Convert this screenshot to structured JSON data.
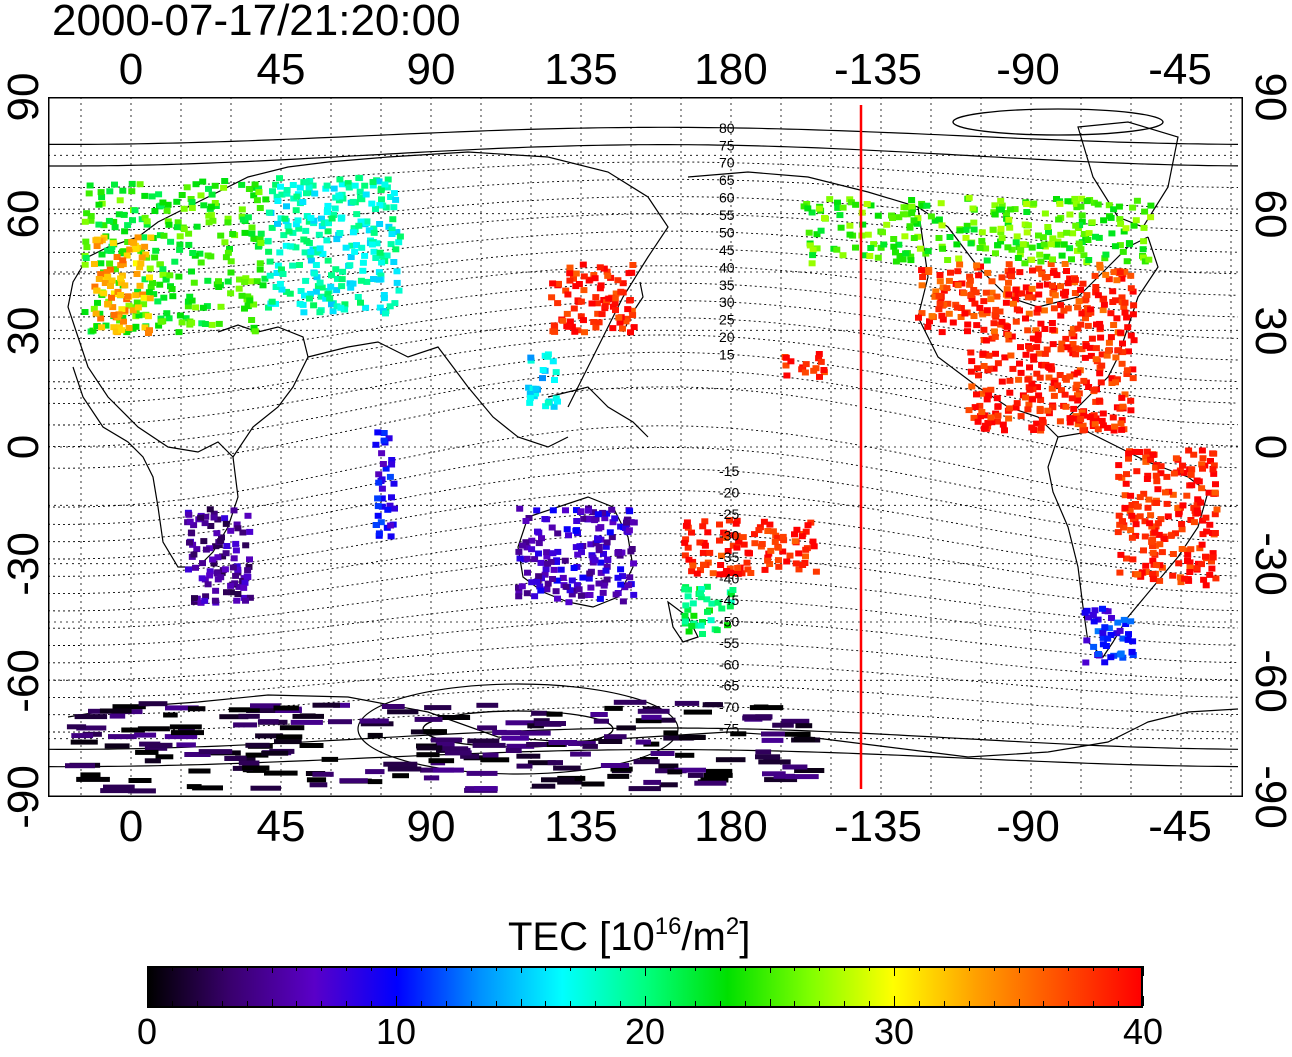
{
  "timestamp": "2000-07-17/21:20:00",
  "top_lon_labels": [
    "0",
    "45",
    "90",
    "135",
    "180",
    "-135",
    "-90",
    "-45"
  ],
  "bottom_lon_labels": [
    "0",
    "45",
    "90",
    "135",
    "180",
    "-135",
    "-90",
    "-45"
  ],
  "left_lat_labels": [
    "90",
    "60",
    "30",
    "0",
    "-30",
    "-60",
    "-90"
  ],
  "right_lat_labels": [
    "90",
    "60",
    "30",
    "0",
    "-30",
    "-60",
    "-90"
  ],
  "colorbar": {
    "title_prefix": "TEC  [10",
    "title_exp1": "16",
    "title_mid": "/m",
    "title_exp2": "2",
    "title_suffix": "]",
    "min": 0,
    "max": 40,
    "tick_labels": [
      "0",
      "10",
      "20",
      "30",
      "40"
    ],
    "colors": [
      "#000000",
      "#3a006f",
      "#5a00c8",
      "#0000ff",
      "#0090ff",
      "#00ffff",
      "#00ff80",
      "#00e000",
      "#80ff00",
      "#ffff00",
      "#ffa000",
      "#ff5000",
      "#ff0000"
    ]
  },
  "contour_labels": [
    "80",
    "75",
    "70",
    "65",
    "60",
    "55",
    "50",
    "45",
    "40",
    "35",
    "30",
    "25",
    "20",
    "15",
    "-15",
    "-20",
    "-25",
    "-30",
    "-35",
    "-40",
    "-45",
    "-50",
    "-55",
    "-60",
    "-65",
    "-70",
    "-75"
  ],
  "terminator_lon": -141,
  "tec_regions": [
    {
      "name": "western-europe",
      "lon": [
        -15,
        40
      ],
      "lat": [
        30,
        70
      ],
      "tec": 24
    },
    {
      "name": "iberia-nw-africa",
      "lon": [
        -12,
        5
      ],
      "lat": [
        30,
        55
      ],
      "tec": 33
    },
    {
      "name": "eastern-europe-russia",
      "lon": [
        40,
        80
      ],
      "lat": [
        35,
        70
      ],
      "tec": 18
    },
    {
      "name": "japan-east-asia",
      "lon": [
        125,
        150
      ],
      "lat": [
        30,
        48
      ],
      "tec": 39
    },
    {
      "name": "taiwan-philippines",
      "lon": [
        118,
        127
      ],
      "lat": [
        10,
        25
      ],
      "tec": 16
    },
    {
      "name": "north-america-midlat",
      "lon": [
        -125,
        -60
      ],
      "lat": [
        30,
        48
      ],
      "tec": 38
    },
    {
      "name": "north-america-north",
      "lon": [
        -160,
        -55
      ],
      "lat": [
        48,
        65
      ],
      "tec": 25
    },
    {
      "name": "central-america-caribbean",
      "lon": [
        -110,
        -60
      ],
      "lat": [
        5,
        30
      ],
      "tec": 39
    },
    {
      "name": "south-america-brazil",
      "lon": [
        -65,
        -35
      ],
      "lat": [
        -35,
        0
      ],
      "tec": 39
    },
    {
      "name": "south-america-south",
      "lon": [
        -75,
        -60
      ],
      "lat": [
        -55,
        -40
      ],
      "tec": 10
    },
    {
      "name": "australia",
      "lon": [
        115,
        150
      ],
      "lat": [
        -40,
        -15
      ],
      "tec": 7
    },
    {
      "name": "new-zealand",
      "lon": [
        165,
        180
      ],
      "lat": [
        -48,
        -35
      ],
      "tec": 21
    },
    {
      "name": "pacific-south",
      "lon": [
        165,
        205
      ],
      "lat": [
        -32,
        -18
      ],
      "tec": 39
    },
    {
      "name": "hawaii",
      "lon": [
        195,
        207
      ],
      "lat": [
        18,
        25
      ],
      "tec": 39
    },
    {
      "name": "indian-ocean",
      "lon": [
        72,
        78
      ],
      "lat": [
        -25,
        5
      ],
      "tec": 9
    },
    {
      "name": "southern-africa",
      "lon": [
        15,
        35
      ],
      "lat": [
        -40,
        -15
      ],
      "tec": 5
    },
    {
      "name": "antarctica",
      "lon": [
        -20,
        200
      ],
      "lat": [
        -90,
        -65
      ],
      "tec": 2
    }
  ]
}
